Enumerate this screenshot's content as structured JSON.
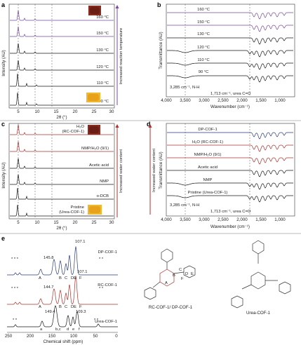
{
  "panels": {
    "a": {
      "letter": "a",
      "xlabel": "2θ (°)",
      "ylabel": "Intensity (AU)",
      "xticks": [
        "5",
        "10",
        "15",
        "20",
        "25",
        "30"
      ],
      "labels": [
        "160 °C",
        "150 °C",
        "130 °C",
        "120 °C",
        "110 °C",
        "90 °C"
      ],
      "arrow_text": "Increased reaction temperature"
    },
    "b": {
      "letter": "b",
      "xlabel": "Wavenumber (cm⁻¹)",
      "ylabel": "Transmittance (AU)",
      "xticks": [
        "4,000",
        "3,500",
        "3,000",
        "2,500",
        "2,000",
        "1,500",
        "1,000"
      ],
      "labels": [
        "160 °C",
        "150 °C",
        "130 °C",
        "120 °C",
        "110 °C",
        "90 °C"
      ],
      "nh": "3,285 cm⁻¹, N-H",
      "co": "1,713 cm⁻¹, urea C=O"
    },
    "c": {
      "letter": "c",
      "xlabel": "2θ (°)",
      "ylabel": "Intensity (AU)",
      "xticks": [
        "5",
        "10",
        "15",
        "20",
        "25",
        "30"
      ],
      "labels": [
        "H₂O",
        "(RC-COF-1)",
        "NMP/H₂O (9/1)",
        "Acetic acid",
        "NMP",
        "o-DCB",
        "Pristine",
        "(Urea-COF-1)"
      ],
      "arrow_text": "Increased water content"
    },
    "d": {
      "letter": "d",
      "xlabel": "Wavenumber (cm⁻¹)",
      "ylabel": "Transmittance (AU)",
      "xticks": [
        "4,000",
        "3,500",
        "3,000",
        "2,500",
        "2,000",
        "1,500",
        "1,000"
      ],
      "labels": [
        "DP-COF-1",
        "H₂O (RC-COF-1)",
        "NMP/H₂O (9/1)",
        "Acetic acid",
        "NMP",
        "Pristine (Urea-COF-1)"
      ],
      "nh": "3,285 cm⁻¹, N-H",
      "co": "1,713 cm⁻¹, urea C=O",
      "arrow_text": "Increased water content"
    },
    "e": {
      "letter": "e",
      "xlabel": "Chemical shift (ppm)",
      "xticks": [
        "250",
        "200",
        "150",
        "100",
        "50",
        "0"
      ],
      "series": [
        "DP-COF-1",
        "RC-COF-1",
        "Urea-COF-1"
      ],
      "peaks_dp": [
        "145.8",
        "107.1"
      ],
      "peaks_rc": [
        "144.7",
        "107.1"
      ],
      "peaks_urea": [
        "149.4",
        "109.3"
      ],
      "letters_upper": [
        "A",
        "B",
        "C",
        "DE",
        "F"
      ],
      "letters_lower": [
        "a",
        "b,c",
        "d",
        "e",
        "f"
      ],
      "struct1": "RC-COF-1/ DP-COF-1",
      "struct2": "Urea-COF-1",
      "letters_struct": [
        "A",
        "B",
        "C",
        "D",
        "E",
        "F"
      ]
    }
  },
  "colors": {
    "purple": "#7a4a9c",
    "black": "#1a1a1a",
    "red": "#a8322d",
    "navy": "#2a3a78",
    "yellow": "#c9a21f",
    "letter": "#9a9a3a"
  }
}
